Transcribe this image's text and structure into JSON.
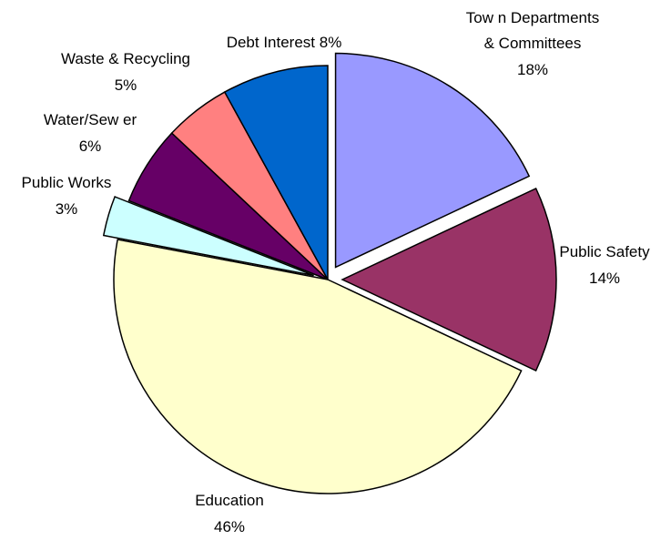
{
  "chart_data": {
    "type": "pie",
    "title": "",
    "legend": "none",
    "slices": [
      {
        "label_lines": [
          "Tow n Departments",
          "& Committees"
        ],
        "pct_label": "18%",
        "value": 18,
        "color": "#9999ff",
        "exploded": true
      },
      {
        "label_lines": [
          "Public Safety"
        ],
        "pct_label": "14%",
        "value": 14,
        "color": "#993366",
        "exploded": true
      },
      {
        "label_lines": [
          "Education"
        ],
        "pct_label": "46%",
        "value": 46,
        "color": "#ffffcc",
        "exploded": false
      },
      {
        "label_lines": [
          "Public Works"
        ],
        "pct_label": "3%",
        "value": 3,
        "color": "#ccffff",
        "exploded": true
      },
      {
        "label_lines": [
          "Water/Sew er"
        ],
        "pct_label": "6%",
        "value": 6,
        "color": "#660066",
        "exploded": false
      },
      {
        "label_lines": [
          "Waste & Recycling"
        ],
        "pct_label": "5%",
        "value": 5,
        "color": "#ff8080",
        "exploded": false
      },
      {
        "label_lines": [
          "Debt Interest 8%"
        ],
        "pct_label": "",
        "value": 8,
        "color": "#0066cc",
        "exploded": false
      }
    ]
  }
}
